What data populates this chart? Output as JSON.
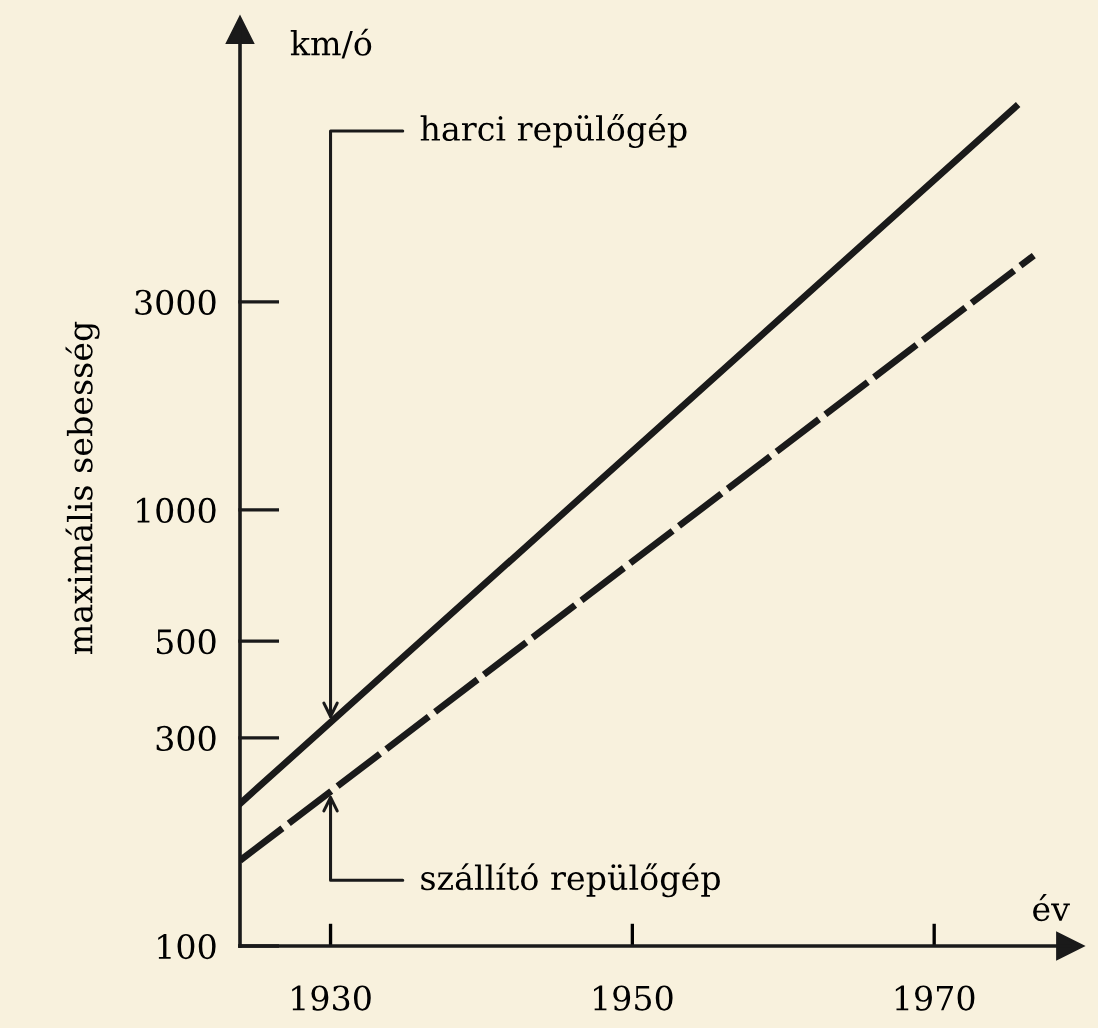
{
  "chart_data": {
    "type": "line",
    "xlabel": "év",
    "ylabel": "maximális sebesség",
    "log": "y",
    "grid": false,
    "legend": false,
    "xlim": [
      1924,
      1979
    ],
    "ylim": [
      100,
      12600
    ],
    "xticks": [
      1930,
      1950,
      1970
    ],
    "yticks": [
      100,
      300,
      500,
      1000,
      3000
    ],
    "series": [
      {
        "color": "#1a1a1a",
        "line_style": "solid",
        "x": [
          1924,
          1975.4
        ],
        "values": [
          212,
          8400
        ]
      },
      {
        "color": "#1a1a1a",
        "line_style": "dashed",
        "x": [
          1924,
          1976.6
        ],
        "values": [
          157,
          3830
        ]
      }
    ],
    "annotations": [
      "km/ó",
      {
        "text": "harci repülőgép",
        "x": 1930,
        "y": 330
      },
      {
        "text": "szállító repülőgép",
        "x": 1930,
        "y": 223
      }
    ]
  }
}
